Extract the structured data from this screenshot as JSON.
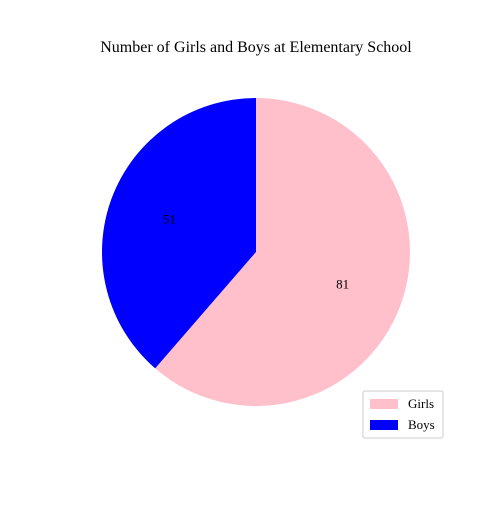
{
  "chart_data": {
    "type": "pie",
    "title": "Number of Girls and Boys at Elementary School",
    "categories": [
      "Girls",
      "Boys"
    ],
    "values": [
      81,
      51
    ],
    "colors": [
      "#ffc0cb",
      "#0000ff"
    ],
    "start_angle_deg": 90,
    "direction": "clockwise",
    "legend_placement": "bottom-right",
    "show_values": true
  }
}
